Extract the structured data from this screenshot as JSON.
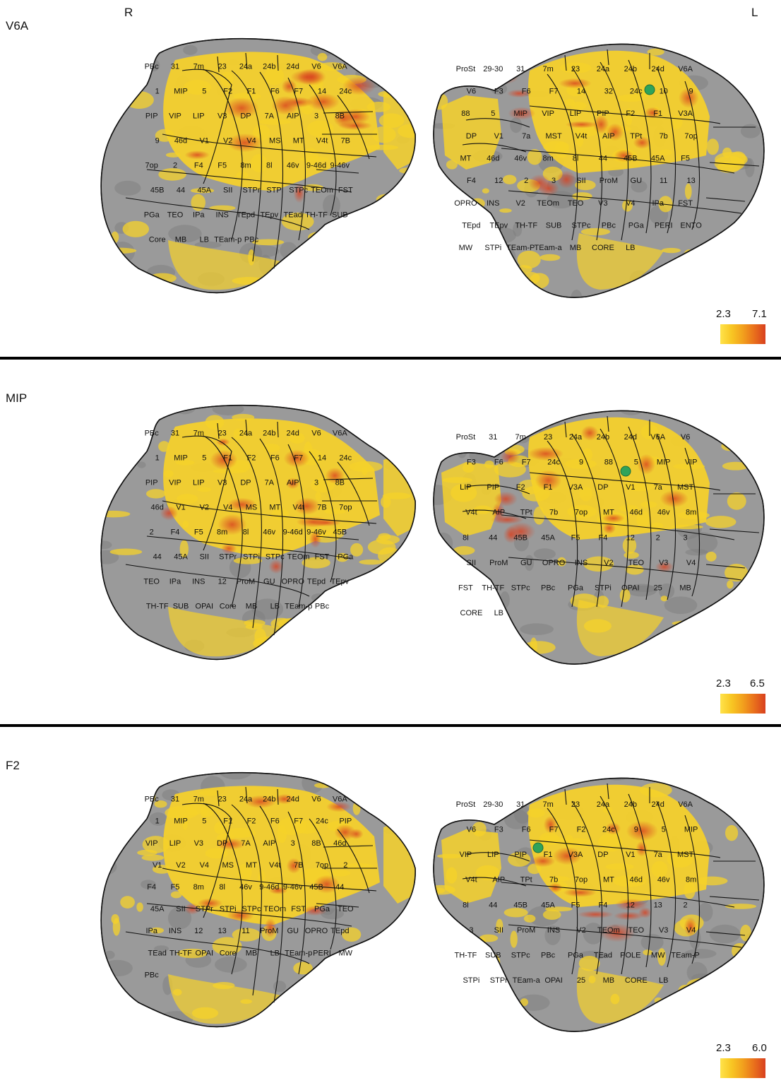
{
  "hemispheres": {
    "right": "R",
    "left": "L"
  },
  "colors": {
    "background": "#ffffff",
    "cortex": "#9a9a9a",
    "cortex_dark": "#7d7d7d",
    "activation_low": "#f6d12a",
    "activation_high": "#d8401f",
    "seed": "#2fa35a",
    "outline": "#111111"
  },
  "colormap_stops": [
    "#ffe34a",
    "#f8c623",
    "#f2a01d",
    "#e9701c",
    "#d8401f"
  ],
  "panels": [
    {
      "title": "V6A",
      "colorbar": {
        "min": "2.3",
        "max": "7.1"
      },
      "seed_area": "V6A",
      "right_labels": [
        "PBc",
        "31",
        "7m",
        "23",
        "24a",
        "24b",
        "24d",
        "V6",
        "V6A",
        "1",
        "MIP",
        "5",
        "F2",
        "F1",
        "F6",
        "F7",
        "14",
        "24c",
        "PIP",
        "VIP",
        "LIP",
        "V3",
        "DP",
        "7A",
        "AIP",
        "3",
        "8B",
        "9",
        "46d",
        "V1",
        "V2",
        "V4",
        "MS",
        "MT",
        "V4t",
        "7B",
        "7op",
        "2",
        "F4",
        "F5",
        "8m",
        "8l",
        "46v",
        "9-46d",
        "9-46v",
        "45B",
        "44",
        "45A",
        "SII",
        "STPr",
        "STPi",
        "STPc",
        "TEOm",
        "FST",
        "PGa",
        "TEO",
        "IPa",
        "INS",
        "TEpd",
        "TEpv",
        "TEad",
        "TH-TF",
        "SUB",
        "Core",
        "MB",
        "LB",
        "TEam-p",
        "PBc"
      ],
      "left_labels": [
        "ProSt",
        "29-30",
        "31",
        "7m",
        "23",
        "24a",
        "24b",
        "24d",
        "V6A",
        "V6",
        "F3",
        "F6",
        "F7",
        "14",
        "32",
        "24c",
        "10",
        "9",
        "88",
        "5",
        "MIP",
        "VIP",
        "LIP",
        "PIP",
        "F2",
        "F1",
        "V3A",
        "DP",
        "V1",
        "7a",
        "MST",
        "V4t",
        "AIP",
        "TPt",
        "7b",
        "7op",
        "MT",
        "46d",
        "46v",
        "8m",
        "8l",
        "44",
        "45B",
        "45A",
        "F5",
        "F4",
        "12",
        "2",
        "3",
        "SII",
        "ProM",
        "GU",
        "11",
        "13",
        "OPRO",
        "INS",
        "V2",
        "TEOm",
        "TEO",
        "V3",
        "V4",
        "IPa",
        "FST",
        "TEpd",
        "TEpv",
        "TH-TF",
        "SUB",
        "STPc",
        "PBc",
        "PGa",
        "PERI",
        "ENTO",
        "MW",
        "STPi",
        "TEam-P",
        "TEam-a",
        "MB",
        "CORE",
        "LB"
      ]
    },
    {
      "title": "MIP",
      "colorbar": {
        "min": "2.3",
        "max": "6.5"
      },
      "seed_area": "MIP",
      "right_labels": [
        "PBc",
        "31",
        "7m",
        "23",
        "24a",
        "24b",
        "24d",
        "V6",
        "V6A",
        "1",
        "MIP",
        "5",
        "F1",
        "F2",
        "F6",
        "F7",
        "14",
        "24c",
        "PIP",
        "VIP",
        "LIP",
        "V3",
        "DP",
        "7A",
        "AIP",
        "3",
        "8B",
        "46d",
        "V1",
        "V2",
        "V4",
        "MS",
        "MT",
        "V4t",
        "7B",
        "7op",
        "2",
        "F4",
        "F5",
        "8m",
        "8l",
        "46v",
        "9-46d",
        "9-46v",
        "45B",
        "44",
        "45A",
        "SII",
        "STPr",
        "STPi",
        "STPc",
        "TEOm",
        "FST",
        "PGa",
        "TEO",
        "IPa",
        "INS",
        "12",
        "ProM",
        "GU",
        "OPRO",
        "TEpd",
        "TEpv",
        "TH-TF",
        "SUB",
        "OPAI",
        "Core",
        "MB",
        "LB",
        "TEam-p",
        "PBc"
      ],
      "left_labels": [
        "ProSt",
        "31",
        "7m",
        "23",
        "24a",
        "24b",
        "24d",
        "V6A",
        "V6",
        "F3",
        "F6",
        "F7",
        "24c",
        "9",
        "88",
        "5",
        "MIP",
        "VIP",
        "LIP",
        "PIP",
        "F2",
        "F1",
        "V3A",
        "DP",
        "V1",
        "7a",
        "MST",
        "V4t",
        "AIP",
        "TPt",
        "7b",
        "7op",
        "MT",
        "46d",
        "46v",
        "8m",
        "8l",
        "44",
        "45B",
        "45A",
        "F5",
        "F4",
        "12",
        "2",
        "3",
        "SII",
        "ProM",
        "GU",
        "OPRO",
        "INS",
        "V2",
        "TEO",
        "V3",
        "V4",
        "FST",
        "TH-TF",
        "STPc",
        "PBc",
        "PGa",
        "STPi",
        "OPAI",
        "25",
        "MB",
        "CORE",
        "LB"
      ]
    },
    {
      "title": "F2",
      "colorbar": {
        "min": "2.3",
        "max": "6.0"
      },
      "seed_area": "F2",
      "right_labels": [
        "PBc",
        "31",
        "7m",
        "23",
        "24a",
        "24b",
        "24d",
        "V6",
        "V6A",
        "1",
        "MIP",
        "5",
        "F1",
        "F2",
        "F6",
        "F7",
        "24c",
        "PIP",
        "VIP",
        "LIP",
        "V3",
        "DP",
        "7A",
        "AIP",
        "3",
        "8B",
        "46d",
        "V1",
        "V2",
        "V4",
        "MS",
        "MT",
        "V4t",
        "7B",
        "7op",
        "2",
        "F4",
        "F5",
        "8m",
        "8l",
        "46v",
        "9-46d",
        "9-46v",
        "45B",
        "44",
        "45A",
        "SII",
        "STPr",
        "STPi",
        "STPc",
        "TEOm",
        "FST",
        "PGa",
        "TEO",
        "IPa",
        "INS",
        "12",
        "13",
        "11",
        "ProM",
        "GU",
        "OPRO",
        "TEpd",
        "TEad",
        "TH-TF",
        "OPAI",
        "Core",
        "MB",
        "LB",
        "TEam-p",
        "PERI",
        "MW",
        "PBc"
      ],
      "left_labels": [
        "ProSt",
        "29-30",
        "31",
        "7m",
        "23",
        "24a",
        "24b",
        "24d",
        "V6A",
        "V6",
        "F3",
        "F6",
        "F7",
        "F2",
        "24c",
        "9",
        "5",
        "MIP",
        "VIP",
        "LIP",
        "PIP",
        "F1",
        "V3A",
        "DP",
        "V1",
        "7a",
        "MST",
        "V4t",
        "AIP",
        "TPt",
        "7b",
        "7op",
        "MT",
        "46d",
        "46v",
        "8m",
        "8l",
        "44",
        "45B",
        "45A",
        "F5",
        "F4",
        "12",
        "13",
        "2",
        "3",
        "SII",
        "ProM",
        "INS",
        "V2",
        "TEOm",
        "TEO",
        "V3",
        "V4",
        "TH-TF",
        "SUB",
        "STPc",
        "PBc",
        "PGa",
        "TEad",
        "POLE",
        "MW",
        "TEam-P",
        "STPi",
        "STPr",
        "TEam-a",
        "OPAI",
        "25",
        "MB",
        "CORE",
        "LB"
      ]
    }
  ]
}
